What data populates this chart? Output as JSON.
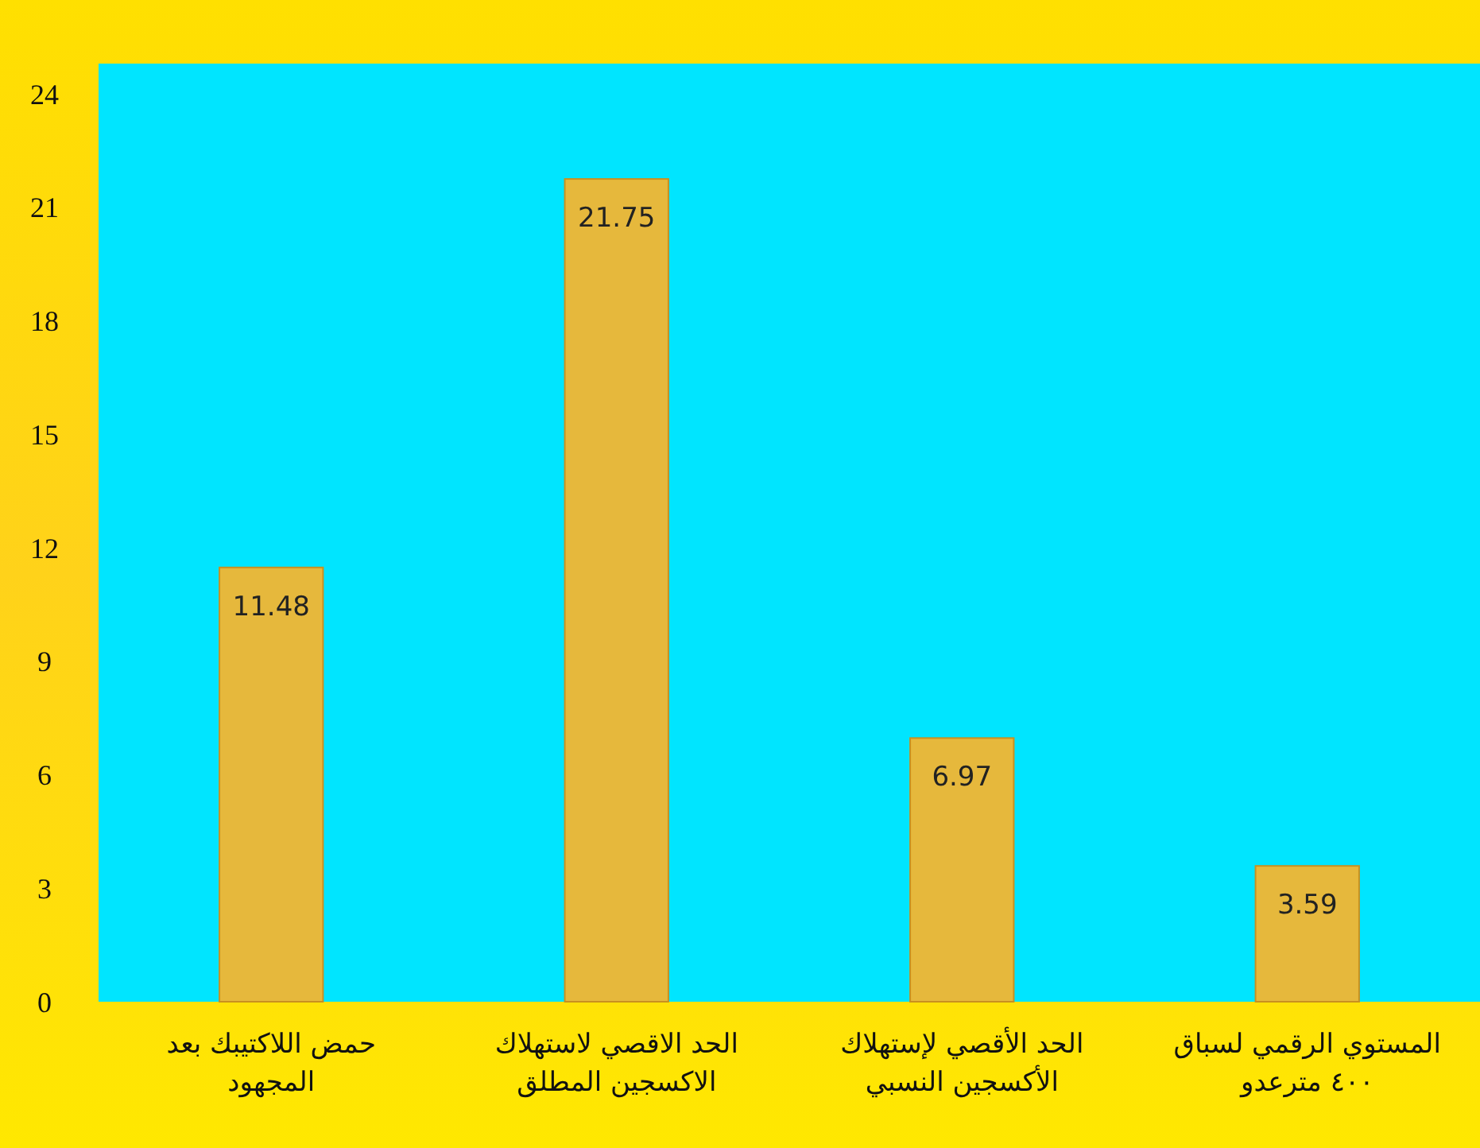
{
  "chart_data": {
    "type": "bar",
    "categories": [
      "حمض اللاكتيبك بعد\nالمجهود",
      "الحد الاقصي لاستهلاك\nالاكسجين المطلق",
      "الحد الأقصي لإستهلاك\nالأكسجين النسبي",
      "المستوي الرقمي لسباق\n٤٠٠ مترعدو"
    ],
    "values": [
      11.48,
      21.75,
      6.97,
      3.59
    ],
    "color": "#e6b83c",
    "data_labels": true,
    "ylim": [
      0,
      24.8
    ],
    "yticks": [
      0,
      3,
      6,
      9,
      12,
      15,
      18,
      21,
      24
    ],
    "grid": false
  }
}
